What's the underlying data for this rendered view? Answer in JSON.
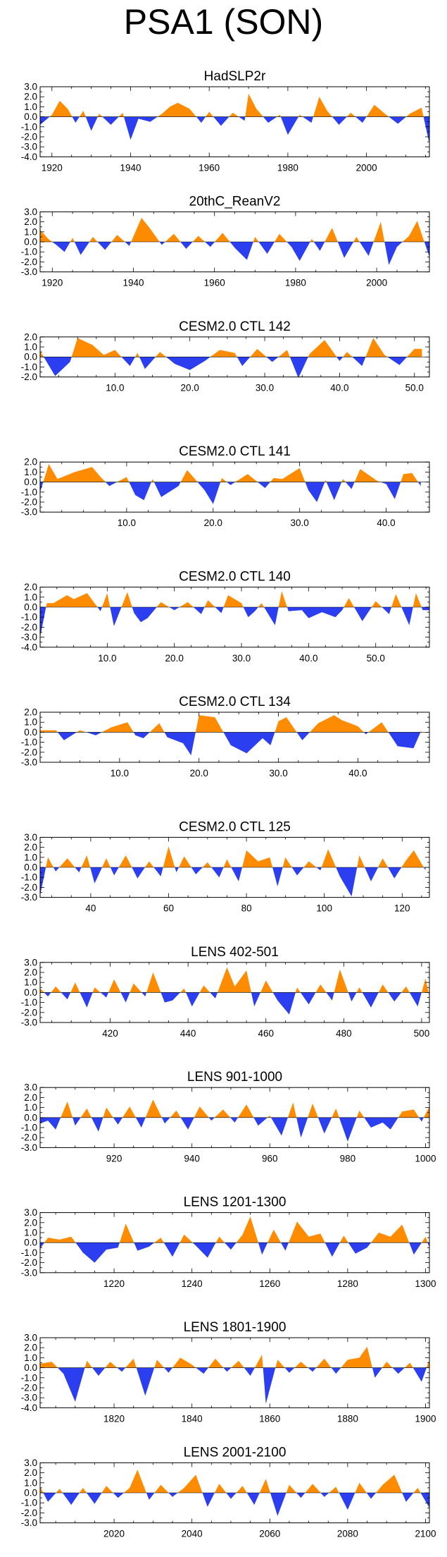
{
  "figure_title": "PSA1 (SON)",
  "colors": {
    "positive": "#ff8c00",
    "negative": "#2c3ff0",
    "axis": "#000000"
  },
  "chart_data": [
    {
      "type": "area",
      "title": "HadSLP2r",
      "xlim": [
        1917,
        2016
      ],
      "ylim": [
        -4,
        3
      ],
      "y_ticks": [
        3,
        2,
        1,
        0,
        -1,
        -2,
        -3,
        -4
      ],
      "y_tick_labels": [
        "3.0",
        "2.0",
        "1.0",
        "0.0",
        "-1.0",
        "-2.0",
        "-3.0",
        "-4.0"
      ],
      "x_ticks": [
        1920,
        1940,
        1960,
        1980,
        2000
      ],
      "x_tick_labels": [
        "1920",
        "1940",
        "1960",
        "1980",
        "2000"
      ],
      "x": [
        1917,
        1920,
        1922,
        1924,
        1926,
        1928,
        1930,
        1932,
        1935,
        1938,
        1940,
        1942,
        1945,
        1948,
        1950,
        1952,
        1955,
        1958,
        1960,
        1963,
        1966,
        1969,
        1970,
        1972,
        1975,
        1978,
        1980,
        1983,
        1986,
        1988,
        1990,
        1993,
        1996,
        1999,
        2002,
        2005,
        2008,
        2011,
        2014,
        2016
      ],
      "values": [
        -0.8,
        0.2,
        1.6,
        0.8,
        -0.6,
        0.6,
        -1.4,
        0.3,
        -0.8,
        0.4,
        -2.3,
        -0.2,
        -0.5,
        0.3,
        1.0,
        1.4,
        0.8,
        -0.6,
        0.5,
        -0.9,
        0.4,
        -0.4,
        2.3,
        0.8,
        -0.6,
        0.2,
        -1.8,
        0.2,
        -0.6,
        2.0,
        0.6,
        -0.8,
        0.4,
        -0.6,
        1.2,
        0.2,
        -0.7,
        0.3,
        0.9,
        -2.7
      ]
    },
    {
      "type": "area",
      "title": "20thC_ReanV2",
      "xlim": [
        1917,
        2013
      ],
      "ylim": [
        -3,
        3
      ],
      "y_ticks": [
        3,
        2,
        1,
        0,
        -1,
        -2,
        -3
      ],
      "y_tick_labels": [
        "3.0",
        "2.0",
        "1.0",
        "0.0",
        "-1.0",
        "-2.0",
        "-3.0"
      ],
      "x_ticks": [
        1920,
        1940,
        1960,
        1980,
        2000
      ],
      "x_tick_labels": [
        "1920",
        "1940",
        "1960",
        "1980",
        "2000"
      ],
      "x": [
        1917,
        1919,
        1921,
        1923,
        1925,
        1927,
        1930,
        1933,
        1936,
        1939,
        1942,
        1944,
        1947,
        1950,
        1953,
        1956,
        1959,
        1962,
        1965,
        1968,
        1970,
        1973,
        1976,
        1979,
        1981,
        1984,
        1986,
        1989,
        1992,
        1995,
        1998,
        2001,
        2003,
        2005,
        2008,
        2010,
        2013
      ],
      "values": [
        1.2,
        0.3,
        -0.3,
        -1.0,
        0.4,
        -1.3,
        0.5,
        -0.8,
        0.7,
        -0.4,
        2.4,
        1.4,
        -0.3,
        0.8,
        -0.7,
        0.6,
        -0.5,
        0.9,
        -0.6,
        -1.8,
        0.5,
        -1.2,
        0.8,
        -0.5,
        -1.9,
        0.3,
        -0.9,
        1.4,
        -1.6,
        0.5,
        -1.4,
        2.0,
        -2.3,
        -0.5,
        0.6,
        2.1,
        -1.5
      ]
    },
    {
      "type": "area",
      "title": "CESM2.0 CTL 142",
      "xlim": [
        0,
        52
      ],
      "ylim": [
        -2,
        2
      ],
      "y_ticks": [
        2,
        1,
        0,
        -1,
        -2
      ],
      "y_tick_labels": [
        "2.0",
        "1.0",
        "0.0",
        "-1.0",
        "-2.0"
      ],
      "x_ticks": [
        10,
        20,
        30,
        40,
        50
      ],
      "x_tick_labels": [
        "10.0",
        "20.0",
        "30.0",
        "40.0",
        "50.0"
      ],
      "x": [
        0,
        2,
        4,
        5,
        7,
        8.5,
        10,
        12,
        13,
        14,
        16,
        18,
        20,
        22,
        24,
        26,
        27,
        29,
        31,
        33,
        34.5,
        36,
        38,
        40,
        41,
        43,
        44.5,
        46,
        48,
        50,
        51
      ],
      "values": [
        0.6,
        -1.9,
        -0.5,
        1.9,
        1.2,
        0.2,
        0.7,
        -0.9,
        0.4,
        -1.2,
        0.5,
        -0.7,
        -1.3,
        -0.4,
        0.7,
        0.4,
        -0.9,
        0.8,
        -0.5,
        0.7,
        -2.1,
        0.3,
        1.7,
        -0.4,
        0.5,
        -0.9,
        1.9,
        0.2,
        -0.8,
        0.8,
        0.8
      ]
    },
    {
      "type": "area",
      "title": "CESM2.0 CTL 141",
      "xlim": [
        0,
        45
      ],
      "ylim": [
        -3,
        2
      ],
      "y_ticks": [
        2,
        1,
        0,
        -1,
        -2,
        -3
      ],
      "y_tick_labels": [
        "2.0",
        "1.0",
        "0.0",
        "-1.0",
        "-2.0",
        "-3.0"
      ],
      "x_ticks": [
        10,
        20,
        30,
        40
      ],
      "x_tick_labels": [
        "10.0",
        "20.0",
        "30.0",
        "40.0"
      ],
      "x": [
        0,
        1,
        2,
        4,
        6,
        7,
        8,
        10,
        11,
        12,
        13,
        14,
        16,
        17,
        18,
        19,
        20,
        21,
        22,
        24,
        26,
        27,
        28,
        30,
        31,
        32,
        33,
        34,
        35,
        36,
        37,
        39,
        40,
        41,
        42,
        43,
        44
      ],
      "values": [
        -1.0,
        1.8,
        0.3,
        1.0,
        1.5,
        0.5,
        -0.4,
        0.5,
        -1.3,
        -1.8,
        0.3,
        -1.5,
        -0.4,
        1.2,
        0.2,
        -0.8,
        -2.2,
        0.4,
        -0.3,
        0.8,
        -0.6,
        0.4,
        0.3,
        1.4,
        -0.8,
        -2.0,
        0.2,
        -1.8,
        0.3,
        -0.7,
        1.3,
        0.1,
        -0.2,
        -1.7,
        0.8,
        0.9,
        -0.4
      ]
    },
    {
      "type": "area",
      "title": "CESM2.0 CTL 140",
      "xlim": [
        0,
        58
      ],
      "ylim": [
        -4,
        2
      ],
      "y_ticks": [
        2,
        1,
        0,
        -1,
        -2,
        -3,
        -4
      ],
      "y_tick_labels": [
        "2.0",
        "1.0",
        "0.0",
        "-1.0",
        "-2.0",
        "-3.0",
        "-4.0"
      ],
      "x_ticks": [
        10,
        20,
        30,
        40,
        50
      ],
      "x_tick_labels": [
        "10.0",
        "20.0",
        "30.0",
        "40.0",
        "50.0"
      ],
      "x": [
        0,
        1,
        2,
        4,
        5,
        7,
        9,
        10,
        11,
        13,
        14,
        15,
        16,
        18,
        20,
        22,
        24,
        25,
        27,
        28,
        30,
        31,
        32,
        33,
        35,
        36,
        37,
        39,
        40,
        42,
        44,
        45,
        46,
        48,
        50,
        52,
        53,
        55,
        56,
        57,
        58
      ],
      "values": [
        -3.0,
        0.4,
        0.4,
        1.2,
        0.8,
        1.4,
        -0.4,
        1.4,
        -1.9,
        1.5,
        -0.6,
        -1.5,
        -1.1,
        0.5,
        -0.3,
        0.5,
        -0.7,
        0.7,
        -0.6,
        1.2,
        0.4,
        -1.0,
        -0.4,
        0.4,
        -1.8,
        1.6,
        -0.4,
        -0.3,
        -1.1,
        -0.5,
        -1.0,
        -0.3,
        0.9,
        -1.4,
        0.6,
        -0.7,
        1.3,
        -1.8,
        1.4,
        -0.3,
        -0.3
      ]
    },
    {
      "type": "area",
      "title": "CESM2.0 CTL 134",
      "xlim": [
        0,
        49
      ],
      "ylim": [
        -3,
        2
      ],
      "y_ticks": [
        2,
        1,
        0,
        -1,
        -2,
        -3
      ],
      "y_tick_labels": [
        "2.0",
        "1.0",
        "0.0",
        "-1.0",
        "-2.0",
        "-3.0"
      ],
      "x_ticks": [
        10,
        20,
        30,
        40
      ],
      "x_tick_labels": [
        "10.0",
        "20.0",
        "30.0",
        "40.0"
      ],
      "x": [
        0,
        2,
        3,
        5,
        7,
        9,
        11,
        12,
        13,
        15,
        16,
        18,
        19,
        20,
        22,
        24,
        26,
        28,
        29,
        30,
        31,
        33,
        35,
        37,
        38,
        40,
        41,
        43,
        45,
        47,
        48
      ],
      "values": [
        0.2,
        0.2,
        -0.8,
        0.2,
        -0.3,
        0.5,
        1.0,
        -0.3,
        -0.6,
        0.9,
        -0.5,
        -1.1,
        -2.3,
        1.7,
        1.5,
        -1.3,
        -2.1,
        -0.6,
        -1.3,
        1.1,
        1.5,
        -0.8,
        0.9,
        1.7,
        1.2,
        0.6,
        -0.2,
        1.0,
        -1.4,
        -1.6,
        0.2
      ]
    },
    {
      "type": "area",
      "title": "CESM2.0 CTL 125",
      "xlim": [
        27,
        127
      ],
      "ylim": [
        -3,
        3
      ],
      "y_ticks": [
        3,
        2,
        1,
        0,
        -1,
        -2,
        -3
      ],
      "y_tick_labels": [
        "3.0",
        "2.0",
        "1.0",
        "0.0",
        "-1.0",
        "-2.0",
        "-3.0"
      ],
      "x_ticks": [
        40,
        60,
        80,
        100,
        120
      ],
      "x_tick_labels": [
        "40",
        "60",
        "80",
        "100",
        "120"
      ],
      "x": [
        27,
        29,
        31,
        34,
        37,
        39,
        41,
        44,
        46,
        49,
        52,
        55,
        58,
        60,
        62,
        64,
        67,
        70,
        73,
        75,
        78,
        80,
        83,
        86,
        88,
        90,
        93,
        96,
        99,
        101,
        104,
        107,
        109,
        112,
        115,
        118,
        121,
        123,
        126
      ],
      "values": [
        -2.8,
        1.0,
        -0.4,
        0.9,
        -0.5,
        1.2,
        -1.6,
        0.9,
        -0.8,
        1.2,
        -1.1,
        0.6,
        -0.9,
        2.1,
        -0.5,
        1.1,
        -0.7,
        0.5,
        -1.0,
        0.8,
        -1.4,
        1.7,
        0.6,
        1.0,
        -1.9,
        1.0,
        -0.8,
        0.6,
        -0.3,
        1.8,
        -0.9,
        -2.9,
        1.2,
        -1.4,
        0.9,
        -1.1,
        0.7,
        1.7,
        -0.3
      ]
    },
    {
      "type": "area",
      "title": "LENS 402-501",
      "xlim": [
        402,
        502
      ],
      "ylim": [
        -3,
        3
      ],
      "y_ticks": [
        3,
        2,
        1,
        0,
        -1,
        -2,
        -3
      ],
      "y_tick_labels": [
        "3.0",
        "2.0",
        "1.0",
        "0.0",
        "-1.0",
        "-2.0",
        "-3.0"
      ],
      "x_ticks": [
        420,
        440,
        460,
        480,
        500
      ],
      "x_tick_labels": [
        "420",
        "440",
        "460",
        "480",
        "500"
      ],
      "x": [
        402,
        404,
        406,
        409,
        411,
        414,
        416,
        419,
        421,
        424,
        426,
        429,
        431,
        434,
        436,
        439,
        441,
        444,
        447,
        450,
        452,
        455,
        457,
        460,
        463,
        466,
        468,
        471,
        474,
        477,
        479,
        482,
        484,
        487,
        490,
        493,
        496,
        499,
        501,
        502
      ],
      "values": [
        0.4,
        -0.4,
        0.6,
        -0.7,
        1.0,
        -1.5,
        0.5,
        -0.5,
        1.3,
        -1.0,
        0.9,
        -0.4,
        2.0,
        -1.0,
        -0.8,
        0.4,
        -1.4,
        0.7,
        -0.6,
        2.5,
        0.6,
        2.2,
        -1.4,
        1.2,
        -0.8,
        -2.2,
        0.5,
        -1.2,
        0.8,
        -0.8,
        2.3,
        -0.9,
        0.5,
        -1.5,
        0.8,
        -0.9,
        0.6,
        -1.4,
        1.4,
        -0.4
      ]
    },
    {
      "type": "area",
      "title": "LENS 901-1000",
      "xlim": [
        901,
        1001
      ],
      "ylim": [
        -3,
        3
      ],
      "y_ticks": [
        3,
        2,
        1,
        0,
        -1,
        -2,
        -3
      ],
      "y_tick_labels": [
        "3.0",
        "2.0",
        "1.0",
        "0.0",
        "-1.0",
        "-2.0",
        "-3.0"
      ],
      "x_ticks": [
        920,
        940,
        960,
        980,
        1000
      ],
      "x_tick_labels": [
        "920",
        "940",
        "960",
        "980",
        "1000"
      ],
      "x": [
        901,
        903,
        905,
        908,
        910,
        913,
        916,
        918,
        921,
        924,
        927,
        930,
        933,
        936,
        939,
        942,
        945,
        948,
        951,
        954,
        957,
        960,
        963,
        966,
        968,
        971,
        974,
        977,
        980,
        983,
        986,
        989,
        991,
        994,
        997,
        999,
        1001
      ],
      "values": [
        -0.6,
        -0.3,
        -1.2,
        1.6,
        -0.8,
        0.9,
        -1.4,
        1.0,
        -0.7,
        1.1,
        -1.0,
        1.8,
        -0.6,
        0.7,
        -1.2,
        1.1,
        -0.3,
        0.8,
        -0.5,
        1.3,
        -0.8,
        0.2,
        -1.8,
        1.5,
        -2.0,
        1.4,
        -1.6,
        0.9,
        -2.4,
        0.7,
        -1.0,
        -0.5,
        -1.2,
        0.6,
        0.8,
        -0.4,
        1.1
      ]
    },
    {
      "type": "area",
      "title": "LENS 1201-1300",
      "xlim": [
        1201,
        1301
      ],
      "ylim": [
        -3,
        3
      ],
      "y_ticks": [
        3,
        2,
        1,
        0,
        -1,
        -2,
        -3
      ],
      "y_tick_labels": [
        "3.0",
        "2.0",
        "1.0",
        "0.0",
        "-1.0",
        "-2.0",
        "-3.0"
      ],
      "x_ticks": [
        1220,
        1240,
        1260,
        1280,
        1300
      ],
      "x_tick_labels": [
        "1220",
        "1240",
        "1260",
        "1280",
        "1300"
      ],
      "x": [
        1201,
        1203,
        1206,
        1209,
        1212,
        1215,
        1218,
        1221,
        1223,
        1226,
        1229,
        1232,
        1235,
        1238,
        1241,
        1244,
        1247,
        1250,
        1253,
        1255,
        1258,
        1261,
        1264,
        1267,
        1270,
        1273,
        1276,
        1279,
        1282,
        1285,
        1288,
        1291,
        1294,
        1297,
        1300,
        1301
      ],
      "values": [
        -0.6,
        0.5,
        0.3,
        0.6,
        -1.0,
        -2.0,
        -0.7,
        -0.5,
        1.9,
        -0.8,
        -0.4,
        0.5,
        -1.4,
        0.8,
        -0.3,
        -1.5,
        0.6,
        -0.7,
        0.8,
        2.6,
        -1.2,
        1.3,
        -0.8,
        2.1,
        0.6,
        0.9,
        -1.4,
        0.7,
        -1.1,
        -0.5,
        1.0,
        0.6,
        1.8,
        -1.2,
        0.6,
        -0.5
      ]
    },
    {
      "type": "area",
      "title": "LENS 1801-1900",
      "xlim": [
        1801,
        1901
      ],
      "ylim": [
        -4,
        3
      ],
      "y_ticks": [
        3,
        2,
        1,
        0,
        -1,
        -2,
        -3,
        -4
      ],
      "y_tick_labels": [
        "3.0",
        "2.0",
        "1.0",
        "0.0",
        "-1.0",
        "-2.0",
        "-3.0",
        "-4.0"
      ],
      "x_ticks": [
        1820,
        1840,
        1860,
        1880,
        1900
      ],
      "x_tick_labels": [
        "1820",
        "1840",
        "1860",
        "1880",
        "1900"
      ],
      "x": [
        1801,
        1804,
        1807,
        1810,
        1813,
        1816,
        1819,
        1822,
        1825,
        1828,
        1831,
        1834,
        1837,
        1840,
        1843,
        1846,
        1849,
        1852,
        1855,
        1858,
        1859,
        1862,
        1865,
        1868,
        1871,
        1874,
        1877,
        1880,
        1883,
        1885,
        1887,
        1890,
        1893,
        1896,
        1899,
        1901
      ],
      "values": [
        0.4,
        0.6,
        -0.6,
        -3.4,
        0.7,
        -0.8,
        0.6,
        -0.4,
        0.9,
        -2.8,
        0.8,
        -0.5,
        1.0,
        0.3,
        -0.6,
        0.9,
        -0.4,
        0.7,
        -0.8,
        1.3,
        -3.6,
        0.8,
        -0.5,
        0.6,
        -0.4,
        0.9,
        -0.6,
        0.8,
        1.0,
        2.1,
        -1.0,
        0.6,
        -0.6,
        0.5,
        -1.4,
        0.8
      ]
    },
    {
      "type": "area",
      "title": "LENS 2001-2100",
      "xlim": [
        2001,
        2101
      ],
      "ylim": [
        -3,
        3
      ],
      "y_ticks": [
        3,
        2,
        1,
        0,
        -1,
        -2,
        -3
      ],
      "y_tick_labels": [
        "3.0",
        "2.0",
        "1.0",
        "0.0",
        "-1.0",
        "-2.0",
        "-3.0"
      ],
      "x_ticks": [
        2020,
        2040,
        2060,
        2080,
        2100
      ],
      "x_tick_labels": [
        "2020",
        "2040",
        "2060",
        "2080",
        "2100"
      ],
      "x": [
        2001,
        2003,
        2006,
        2009,
        2012,
        2015,
        2018,
        2021,
        2024,
        2026,
        2029,
        2032,
        2035,
        2038,
        2041,
        2044,
        2047,
        2050,
        2053,
        2056,
        2059,
        2062,
        2065,
        2068,
        2071,
        2074,
        2077,
        2080,
        2083,
        2086,
        2089,
        2092,
        2095,
        2098,
        2101
      ],
      "values": [
        0.6,
        -0.9,
        0.4,
        -1.2,
        0.5,
        -1.1,
        0.7,
        -0.5,
        0.5,
        2.3,
        -0.7,
        0.8,
        -0.4,
        0.5,
        1.8,
        -1.4,
        0.9,
        -0.6,
        0.7,
        -1.2,
        1.4,
        -2.3,
        0.8,
        -0.5,
        0.9,
        -0.4,
        0.6,
        -1.7,
        1.0,
        -0.6,
        0.8,
        1.8,
        -0.9,
        0.5,
        -1.5
      ]
    }
  ]
}
